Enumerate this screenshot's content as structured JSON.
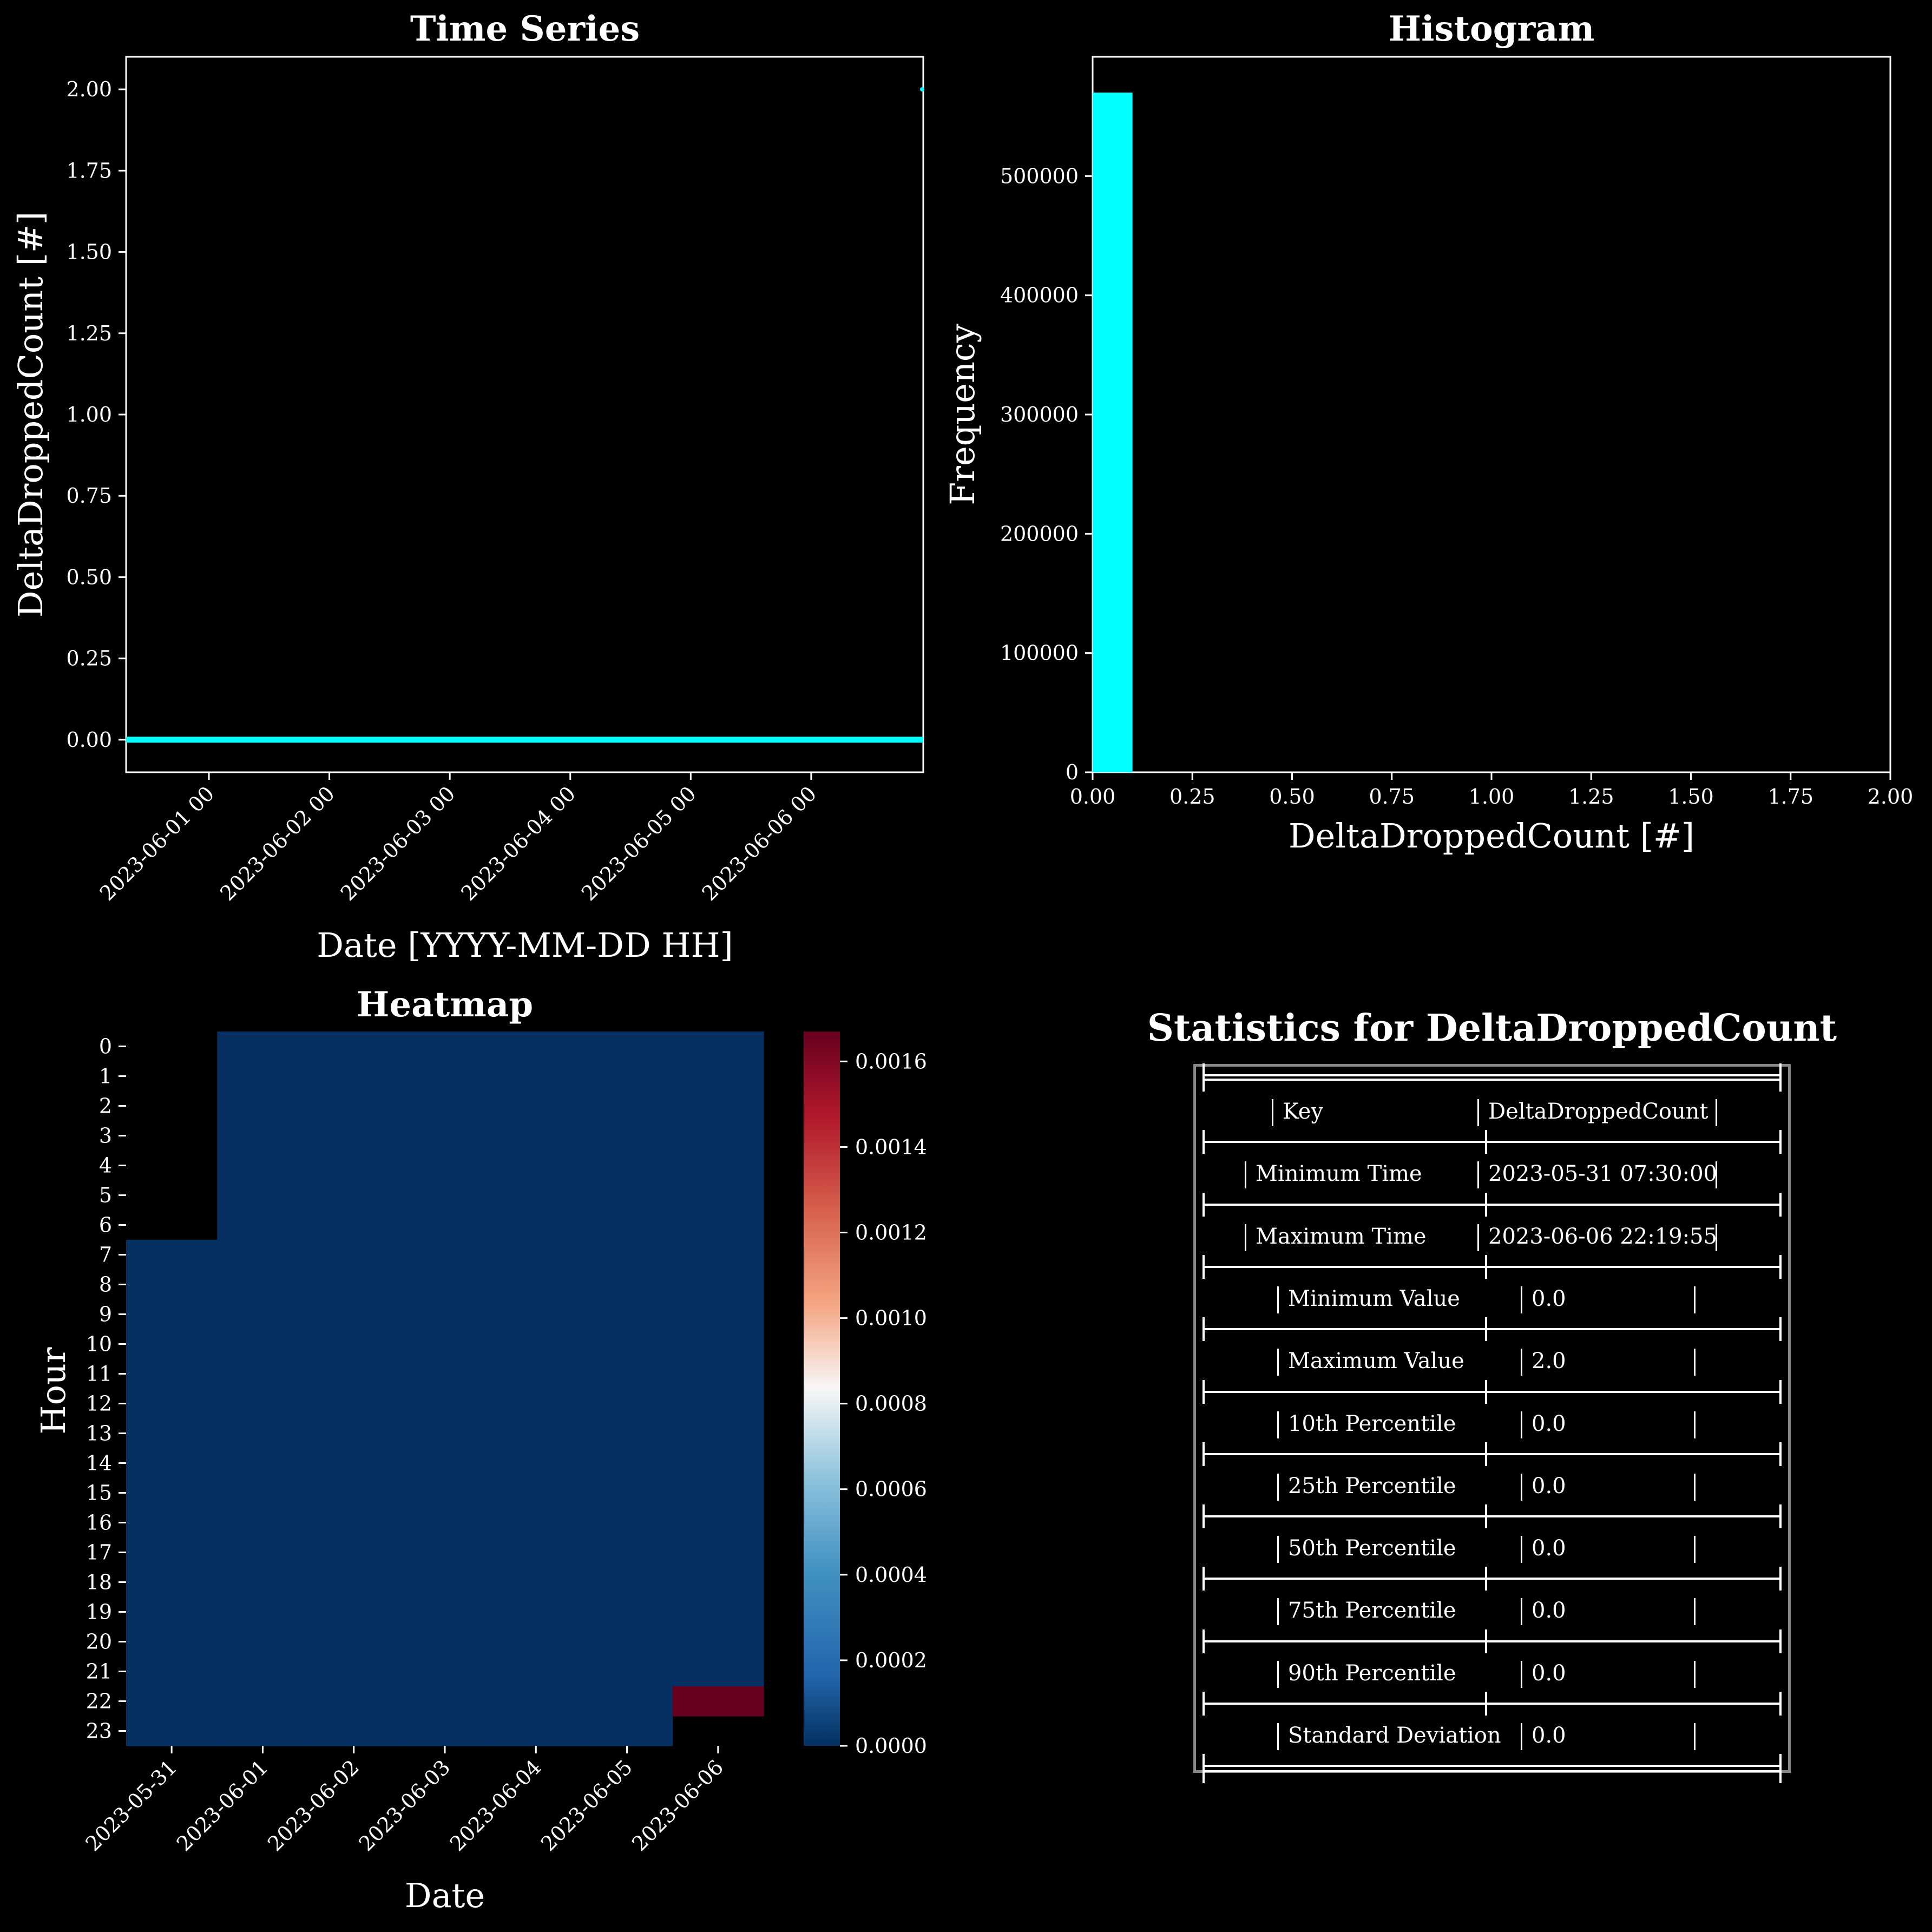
{
  "colors": {
    "background": "#000000",
    "series": "#00ffff",
    "heat_low": "#053061",
    "heat_high": "#67001f",
    "frame": "#ffffff"
  },
  "timeseries": {
    "title": "Time Series",
    "xlabel": "Date [YYYY-MM-DD HH]",
    "ylabel": "DeltaDroppedCount [#]",
    "yticks": [
      "0.00",
      "0.25",
      "0.50",
      "0.75",
      "1.00",
      "1.25",
      "1.50",
      "1.75",
      "2.00"
    ],
    "xticks": [
      "2023-06-01 00",
      "2023-06-02 00",
      "2023-06-03 00",
      "2023-06-04 00",
      "2023-06-05 00",
      "2023-06-06 00"
    ]
  },
  "histogram": {
    "title": "Histogram",
    "xlabel": "DeltaDroppedCount [#]",
    "ylabel": "Frequency",
    "yticks": [
      "0",
      "100000",
      "200000",
      "300000",
      "400000",
      "500000"
    ],
    "xticks": [
      "0.00",
      "0.25",
      "0.50",
      "0.75",
      "1.00",
      "1.25",
      "1.50",
      "1.75",
      "2.00"
    ]
  },
  "heatmap": {
    "title": "Heatmap",
    "xlabel": "Date",
    "ylabel": "Hour",
    "xticks": [
      "2023-05-31",
      "2023-06-01",
      "2023-06-02",
      "2023-06-03",
      "2023-06-04",
      "2023-06-05",
      "2023-06-06"
    ],
    "yticks": [
      "0",
      "1",
      "2",
      "3",
      "4",
      "5",
      "6",
      "7",
      "8",
      "9",
      "10",
      "11",
      "12",
      "13",
      "14",
      "15",
      "16",
      "17",
      "18",
      "19",
      "20",
      "21",
      "22",
      "23"
    ],
    "colorbar_ticks": [
      "0.0000",
      "0.0002",
      "0.0004",
      "0.0006",
      "0.0008",
      "0.0010",
      "0.0012",
      "0.0014",
      "0.0016"
    ]
  },
  "stats": {
    "title": "Statistics for DeltaDroppedCount",
    "rows": [
      {
        "key": "Key",
        "value": "DeltaDroppedCount"
      },
      {
        "key": "Minimum Time",
        "value": "2023-05-31 07:30:00"
      },
      {
        "key": "Maximum Time",
        "value": "2023-06-06 22:19:55"
      },
      {
        "key": "Minimum Value",
        "value": "0.0"
      },
      {
        "key": "Maximum Value",
        "value": "2.0"
      },
      {
        "key": "10th Percentile",
        "value": "0.0"
      },
      {
        "key": "25th Percentile",
        "value": "0.0"
      },
      {
        "key": "50th Percentile",
        "value": "0.0"
      },
      {
        "key": "75th Percentile",
        "value": "0.0"
      },
      {
        "key": "90th Percentile",
        "value": "0.0"
      },
      {
        "key": "Standard Deviation",
        "value": "0.0"
      }
    ]
  },
  "chart_data": [
    {
      "type": "line",
      "title": "Time Series",
      "xlabel": "Date [YYYY-MM-DD HH]",
      "ylabel": "DeltaDroppedCount [#]",
      "x_range": [
        "2023-05-31 07:30:00",
        "2023-06-06 22:19:55"
      ],
      "ylim": [
        -0.1,
        2.1
      ],
      "series": [
        {
          "x": [
            "2023-05-31 07:30:00",
            "2023-06-06 22:19:00",
            "2023-06-06 22:19:55"
          ],
          "values": [
            0,
            0,
            2
          ]
        }
      ],
      "grid": false
    },
    {
      "type": "bar",
      "title": "Histogram",
      "xlabel": "DeltaDroppedCount [#]",
      "ylabel": "Frequency",
      "xlim": [
        0,
        2
      ],
      "ylim": [
        0,
        600000
      ],
      "bins": [
        {
          "start": 0.0,
          "end": 0.1,
          "count": 570000
        }
      ],
      "grid": false
    },
    {
      "type": "heatmap",
      "title": "Heatmap",
      "xlabel": "Date",
      "ylabel": "Hour",
      "categories": [
        "2023-05-31",
        "2023-06-01",
        "2023-06-02",
        "2023-06-03",
        "2023-06-04",
        "2023-06-05",
        "2023-06-06"
      ],
      "hours": [
        0,
        1,
        2,
        3,
        4,
        5,
        6,
        7,
        8,
        9,
        10,
        11,
        12,
        13,
        14,
        15,
        16,
        17,
        18,
        19,
        20,
        21,
        22,
        23
      ],
      "value_range": [
        0,
        0.00167
      ],
      "first_hour_by_date": [
        7,
        0,
        0,
        0,
        0,
        0,
        0
      ],
      "last_hour_by_date": [
        23,
        23,
        23,
        23,
        23,
        23,
        22
      ],
      "default_value": 0,
      "cells": [
        {
          "date": "2023-06-06",
          "hour": 22,
          "value": 0.00167
        }
      ]
    }
  ]
}
